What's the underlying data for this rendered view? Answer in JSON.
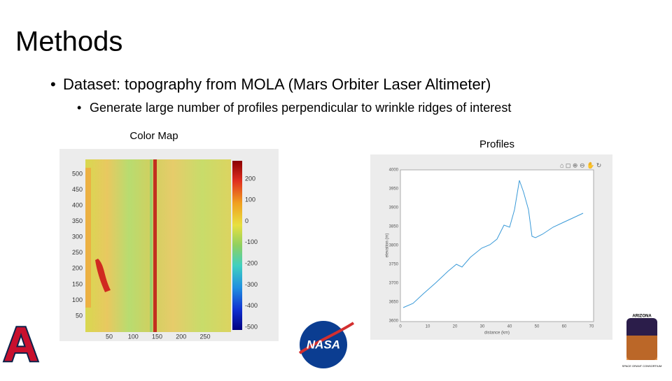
{
  "title": "Methods",
  "bullets": [
    {
      "text": "Dataset: topography from MOLA (Mars Orbiter Laser Altimeter)",
      "sub": [
        "Generate large number of profiles perpendicular to wrinkle ridges of interest"
      ]
    }
  ],
  "figures": [
    {
      "caption": "Color Map",
      "y_ticks": [
        500,
        450,
        400,
        350,
        300,
        250,
        200,
        150,
        100,
        50
      ],
      "x_ticks": [
        50,
        100,
        150,
        200,
        250
      ],
      "colorbar_ticks": [
        200,
        100,
        0,
        -100,
        -200,
        -300,
        -400,
        -500
      ]
    },
    {
      "caption": "Profiles",
      "x_label": "distance (km)",
      "y_label": "elevation (m)",
      "x_ticks": [
        0,
        10,
        20,
        30,
        40,
        50,
        60,
        70
      ],
      "y_ticks": [
        4000,
        3950,
        3900,
        3850,
        3800,
        3750,
        3700,
        3650,
        3600
      ]
    }
  ],
  "logos": {
    "left": "A",
    "nasa": "NASA",
    "right_top": "ARIZONA",
    "right_bottom": "SPACE GRANT CONSORTIUM"
  }
}
